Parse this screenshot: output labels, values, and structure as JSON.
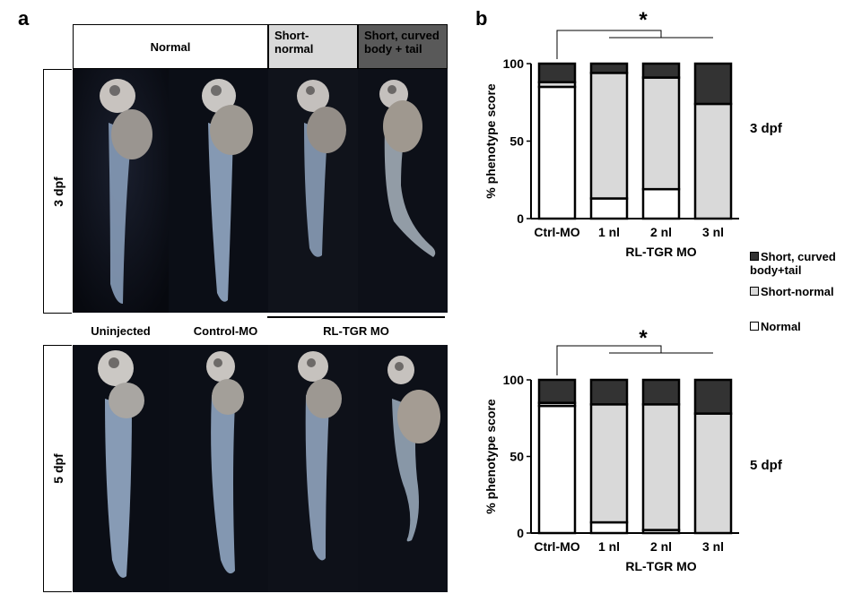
{
  "panel_a": {
    "letter": "a",
    "headers": [
      {
        "label": "Normal",
        "bg": "#ffffff"
      },
      {
        "label": "Short-normal",
        "bg": "#d9d9d9"
      },
      {
        "label": "Short, curved body + tail",
        "bg": "#595959"
      }
    ],
    "rows": [
      "3 dpf",
      "5 dpf"
    ],
    "captions": [
      "Uninjected",
      "Control-MO",
      "RL-TGR MO"
    ]
  },
  "panel_b": {
    "letter": "b",
    "significance": "*",
    "legend": [
      {
        "label": "Short, curved body+tail",
        "color": "#333333"
      },
      {
        "label": "Short-normal",
        "color": "#d9d9d9"
      },
      {
        "label": "Normal",
        "color": "#ffffff"
      }
    ]
  },
  "chart_data": [
    {
      "type": "bar",
      "stacked": true,
      "side_label": "3 dpf",
      "categories": [
        "Ctrl-MO",
        "1 nl",
        "2 nl",
        "3 nl"
      ],
      "series": [
        {
          "name": "Normal",
          "values": [
            85,
            13,
            19,
            0
          ]
        },
        {
          "name": "Short-normal",
          "values": [
            3,
            81,
            72,
            74
          ]
        },
        {
          "name": "Short, curved body+tail",
          "values": [
            12,
            6,
            9,
            26
          ]
        }
      ],
      "xlabel": "RL-TGR MO",
      "ylabel": "% phenotype score",
      "yticks": [
        0,
        50,
        100
      ],
      "ylim": [
        0,
        100
      ]
    },
    {
      "type": "bar",
      "stacked": true,
      "side_label": "5 dpf",
      "categories": [
        "Ctrl-MO",
        "1 nl",
        "2 nl",
        "3 nl"
      ],
      "series": [
        {
          "name": "Normal",
          "values": [
            83,
            7,
            2,
            0
          ]
        },
        {
          "name": "Short-normal",
          "values": [
            2,
            77,
            82,
            78
          ]
        },
        {
          "name": "Short, curved body+tail",
          "values": [
            15,
            16,
            16,
            22
          ]
        }
      ],
      "xlabel": "RL-TGR MO",
      "ylabel": "% phenotype score",
      "yticks": [
        0,
        50,
        100
      ],
      "ylim": [
        0,
        100
      ]
    }
  ]
}
